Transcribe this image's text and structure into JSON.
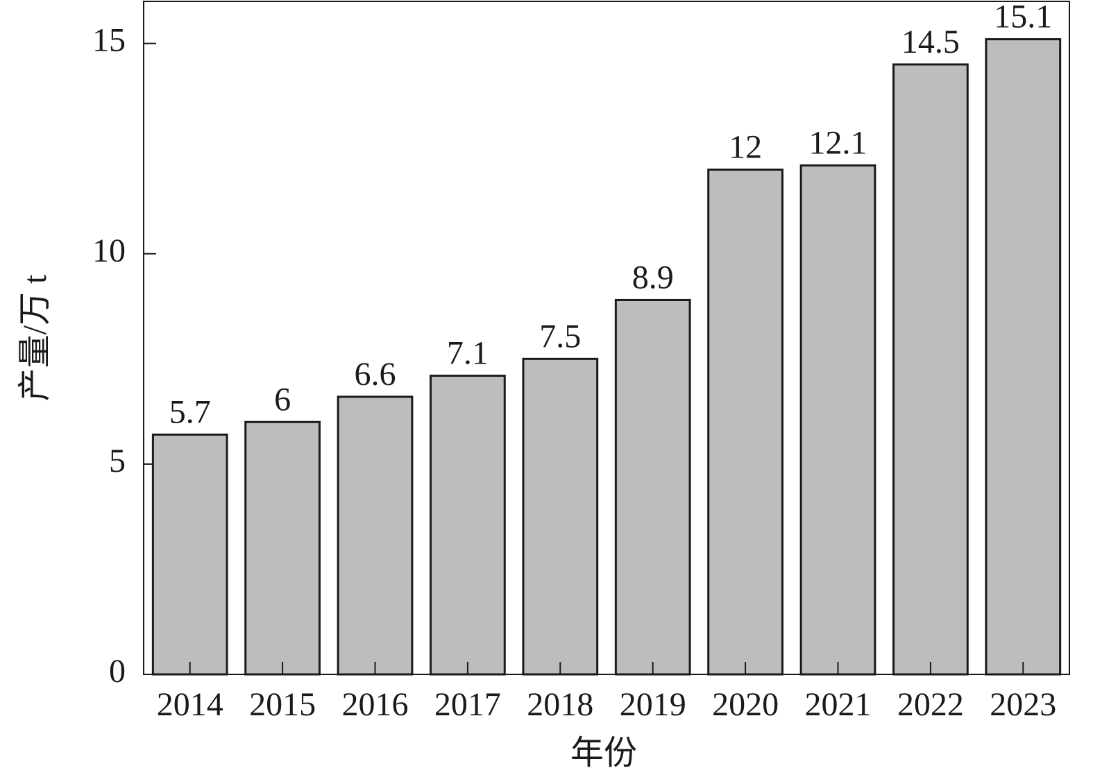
{
  "chart_data": {
    "type": "bar",
    "x_label": "年份",
    "y_label": "产量/万 t",
    "categories": [
      "2014",
      "2015",
      "2016",
      "2017",
      "2018",
      "2019",
      "2020",
      "2021",
      "2022",
      "2023"
    ],
    "values": [
      5.7,
      6,
      6.6,
      7.1,
      7.5,
      8.9,
      12,
      12.1,
      14.5,
      15.1
    ],
    "color": "#bdbdbd",
    "ylim": [
      0,
      16
    ],
    "yticks": [
      0,
      5,
      10,
      15
    ],
    "grid": false
  }
}
